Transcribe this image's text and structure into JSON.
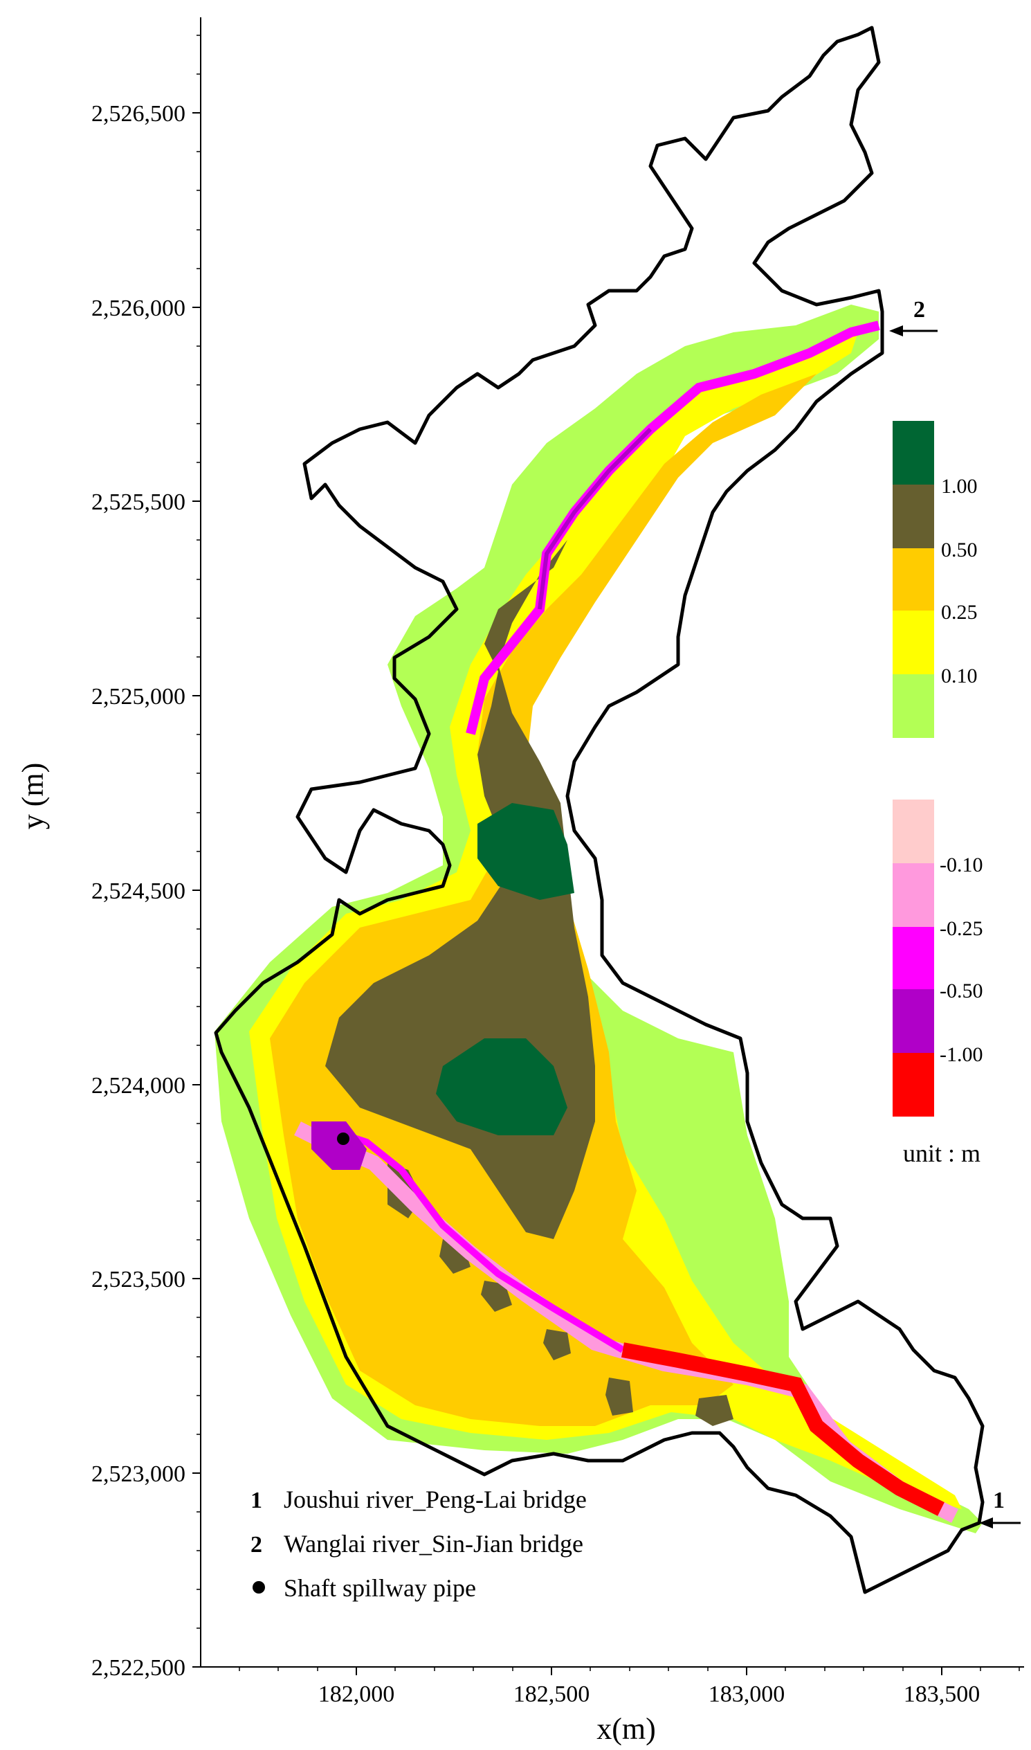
{
  "figure": {
    "x_axis": {
      "title": "x(m)",
      "ticks": [
        "182,000",
        "182,500",
        "183,000",
        "183,500"
      ]
    },
    "y_axis": {
      "title": "y (m)",
      "ticks": [
        "2,526,500",
        "2,526,000",
        "2,525,500",
        "2,525,000",
        "2,524,500",
        "2,524,000",
        "2,523,500",
        "2,523,000",
        "2,522,500"
      ]
    },
    "legend_positive": [
      {
        "label": "1.00",
        "color": "#006633"
      },
      {
        "label": "0.50",
        "color": "#665f2f"
      },
      {
        "label": "0.25",
        "color": "#ffcc00"
      },
      {
        "label": "0.10",
        "color": "#ffff00"
      },
      {
        "label": "",
        "color": "#b3ff55"
      }
    ],
    "legend_negative": [
      {
        "label": "-0.10",
        "color": "#ffcccc"
      },
      {
        "label": "-0.25",
        "color": "#ff99dd"
      },
      {
        "label": "-0.50",
        "color": "#ff00ff"
      },
      {
        "label": "-1.00",
        "color": "#b000c8"
      },
      {
        "label": "",
        "color": "#ff0000"
      }
    ],
    "unit_label": "unit : m",
    "markers": {
      "marker1": "1",
      "marker2": "2"
    },
    "notes": [
      {
        "symbol": "1",
        "text": "Joushui river_Peng-Lai bridge"
      },
      {
        "symbol": "2",
        "text": "Wanglai river_Sin-Jian bridge"
      },
      {
        "symbol": "●",
        "text": "Shaft spillway pipe"
      }
    ]
  }
}
